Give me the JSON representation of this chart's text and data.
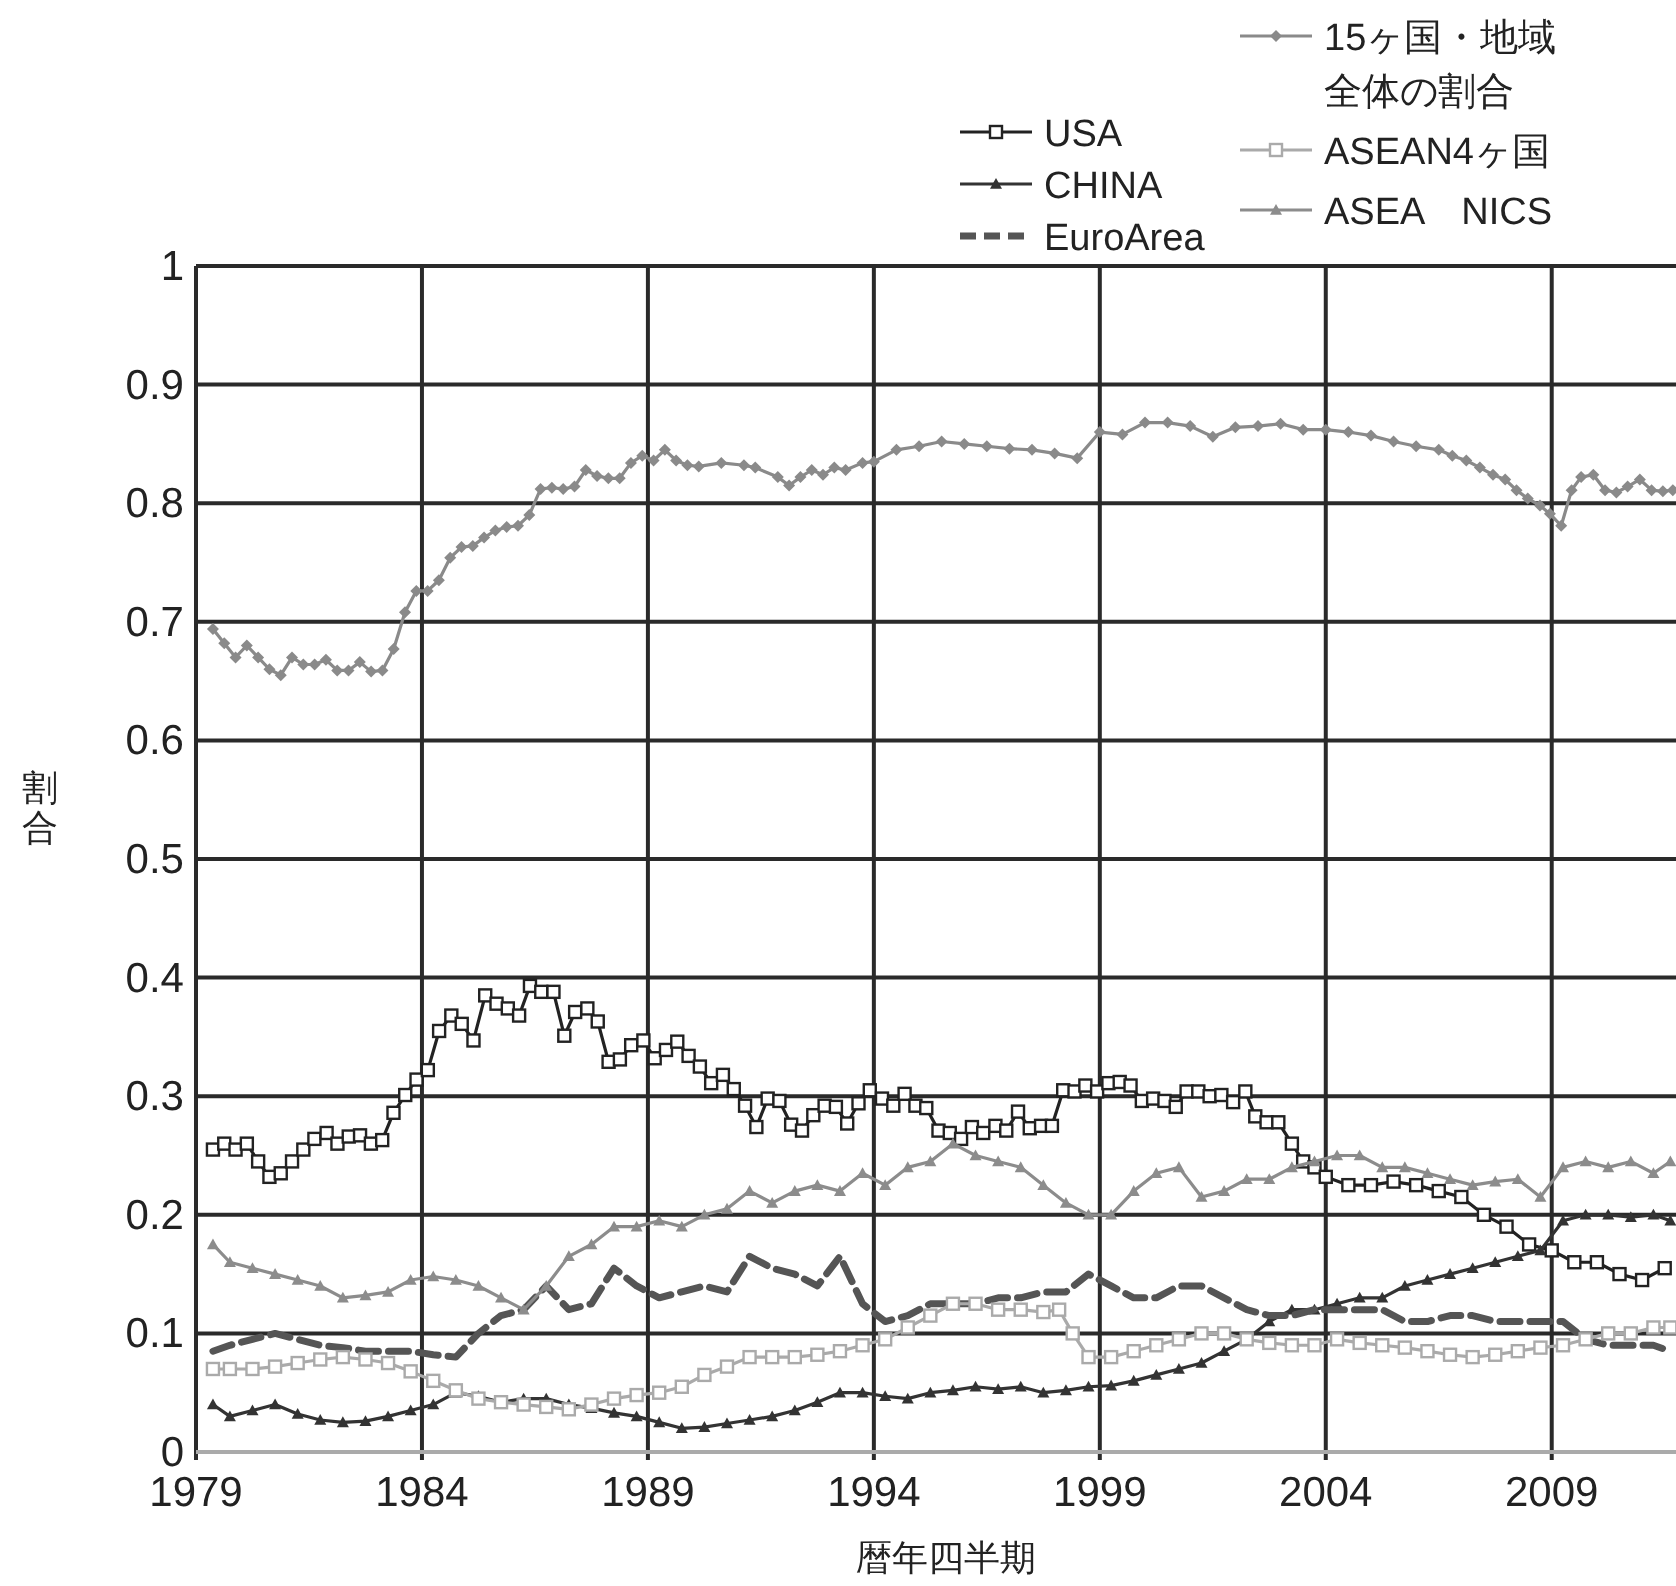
{
  "chart_data": {
    "type": "line",
    "xlabel": "暦年四半期",
    "ylabel": "割合",
    "xlim": [
      1979,
      2011.75
    ],
    "ylim": [
      0,
      1
    ],
    "xticks": [
      1979,
      1984,
      1989,
      1994,
      1999,
      2004,
      2009
    ],
    "yticks": [
      0,
      0.1,
      0.2,
      0.3,
      0.4,
      0.5,
      0.6,
      0.7,
      0.8,
      0.9,
      1
    ],
    "grid": true,
    "legend": "top right",
    "series": [
      {
        "name": "USA",
        "color": "#222222",
        "marker": "square",
        "line_style": "solid",
        "x": [
          1979.375,
          1979.625,
          1979.875,
          1980.125,
          1980.375,
          1980.625,
          1980.875,
          1981.125,
          1981.375,
          1981.62,
          1981.89,
          1982.13,
          1982.38,
          1982.63,
          1982.87,
          1983.12,
          1983.37,
          1983.63,
          1983.88,
          1984.13,
          1984.38,
          1984.65,
          1984.88,
          1985.14,
          1985.4,
          1985.65,
          1985.9,
          1986.15,
          1986.39,
          1986.64,
          1986.91,
          1987.15,
          1987.39,
          1987.66,
          1987.89,
          1988.13,
          1988.38,
          1988.63,
          1988.9,
          1989.15,
          1989.4,
          1989.65,
          1989.9,
          1990.15,
          1990.4,
          1990.66,
          1990.9,
          1991.15,
          1991.4,
          1991.65,
          1991.91,
          1992.17,
          1992.41,
          1992.66,
          1992.91,
          1993.16,
          1993.41,
          1993.66,
          1993.91,
          1994.18,
          1994.43,
          1994.68,
          1994.92,
          1995.16,
          1995.43,
          1995.68,
          1995.93,
          1996.17,
          1996.42,
          1996.69,
          1996.93,
          1997.19,
          1997.45,
          1997.7,
          1997.94,
          1998.19,
          1998.44,
          1998.68,
          1998.94,
          1999.19,
          1999.44,
          1999.68,
          1999.93,
          2000.18,
          2000.43,
          2000.68,
          2000.92,
          2001.18,
          2001.43,
          2001.69,
          2001.95,
          2002.22,
          2002.44,
          2002.69,
          2002.95,
          2003.25,
          2003.5,
          2003.75,
          2004,
          2004.5,
          2005,
          2005.5,
          2006,
          2006.5,
          2007,
          2007.5,
          2008,
          2008.5,
          2009,
          2009.5,
          2010,
          2010.5,
          2011,
          2011.5
        ],
        "values": [
          0.255,
          0.26,
          0.255,
          0.26,
          0.245,
          0.232,
          0.235,
          0.245,
          0.255,
          0.264,
          0.269,
          0.26,
          0.266,
          0.267,
          0.26,
          0.263,
          0.286,
          0.301,
          0.314,
          0.322,
          0.355,
          0.368,
          0.361,
          0.347,
          0.385,
          0.378,
          0.374,
          0.368,
          0.393,
          0.388,
          0.388,
          0.351,
          0.371,
          0.374,
          0.363,
          0.329,
          0.331,
          0.343,
          0.347,
          0.332,
          0.339,
          0.346,
          0.334,
          0.325,
          0.311,
          0.318,
          0.306,
          0.292,
          0.274,
          0.298,
          0.296,
          0.276,
          0.271,
          0.284,
          0.292,
          0.291,
          0.277,
          0.294,
          0.305,
          0.298,
          0.292,
          0.302,
          0.292,
          0.29,
          0.271,
          0.269,
          0.264,
          0.274,
          0.269,
          0.275,
          0.271,
          0.287,
          0.273,
          0.275,
          0.275,
          0.305,
          0.304,
          0.309,
          0.304,
          0.311,
          0.312,
          0.309,
          0.296,
          0.298,
          0.296,
          0.291,
          0.304,
          0.304,
          0.3,
          0.301,
          0.295,
          0.304,
          0.283,
          0.278,
          0.278,
          0.26,
          0.245,
          0.24,
          0.232,
          0.225,
          0.225,
          0.228,
          0.225,
          0.22,
          0.215,
          0.2,
          0.19,
          0.175,
          0.17,
          0.16,
          0.16,
          0.15,
          0.145,
          0.155
        ]
      },
      {
        "name": "CHINA",
        "color": "#333333",
        "marker": "triangle",
        "line_style": "solid",
        "x": [
          1979.375,
          1979.75,
          1980.25,
          1980.75,
          1981.25,
          1981.75,
          1982.25,
          1982.75,
          1983.25,
          1983.75,
          1984.25,
          1984.75,
          1985.25,
          1985.75,
          1986.25,
          1986.75,
          1987.25,
          1987.75,
          1988.25,
          1988.75,
          1989.25,
          1989.75,
          1990.25,
          1990.75,
          1991.25,
          1991.75,
          1992.25,
          1992.75,
          1993.25,
          1993.75,
          1994.25,
          1994.75,
          1995.25,
          1995.75,
          1996.25,
          1996.75,
          1997.25,
          1997.75,
          1998.25,
          1998.75,
          1999.25,
          1999.75,
          2000.25,
          2000.75,
          2001.25,
          2001.75,
          2002.25,
          2002.75,
          2003.25,
          2003.75,
          2004.25,
          2004.75,
          2005.25,
          2005.75,
          2006.25,
          2006.75,
          2007.25,
          2007.75,
          2008.25,
          2008.75,
          2009.25,
          2009.75,
          2010.25,
          2010.75,
          2011.25,
          2011.625
        ],
        "values": [
          0.04,
          0.03,
          0.035,
          0.04,
          0.032,
          0.027,
          0.025,
          0.026,
          0.03,
          0.035,
          0.04,
          0.05,
          0.047,
          0.042,
          0.045,
          0.045,
          0.04,
          0.037,
          0.033,
          0.03,
          0.025,
          0.02,
          0.021,
          0.024,
          0.027,
          0.03,
          0.035,
          0.042,
          0.05,
          0.05,
          0.047,
          0.045,
          0.05,
          0.052,
          0.055,
          0.053,
          0.055,
          0.05,
          0.052,
          0.055,
          0.056,
          0.06,
          0.065,
          0.07,
          0.075,
          0.085,
          0.095,
          0.11,
          0.12,
          0.12,
          0.125,
          0.13,
          0.13,
          0.14,
          0.145,
          0.15,
          0.155,
          0.16,
          0.165,
          0.17,
          0.195,
          0.2,
          0.2,
          0.198,
          0.2,
          0.195
        ]
      },
      {
        "name": "EuroArea",
        "color": "#555555",
        "marker": "none",
        "line_style": "dashed",
        "x": [
          1979.375,
          1979.75,
          1980.25,
          1980.75,
          1981.25,
          1981.75,
          1982.25,
          1982.75,
          1983.25,
          1983.75,
          1984.25,
          1984.75,
          1985.25,
          1985.75,
          1986.25,
          1986.75,
          1987.25,
          1987.75,
          1988.25,
          1988.75,
          1989.25,
          1989.75,
          1990.25,
          1990.75,
          1991.25,
          1991.75,
          1992.25,
          1992.75,
          1993.25,
          1993.75,
          1994.25,
          1994.75,
          1995.25,
          1995.75,
          1996.25,
          1996.75,
          1997.25,
          1997.75,
          1998.25,
          1998.75,
          1999.25,
          1999.75,
          2000.25,
          2000.75,
          2001.25,
          2001.75,
          2002.25,
          2002.75,
          2003.25,
          2003.75,
          2004.25,
          2004.75,
          2005.25,
          2005.75,
          2006.25,
          2006.75,
          2007.25,
          2007.75,
          2008.25,
          2008.75,
          2009.25,
          2009.75,
          2010.25,
          2010.75,
          2011.25,
          2011.625
        ],
        "values": [
          0.085,
          0.09,
          0.095,
          0.1,
          0.095,
          0.09,
          0.088,
          0.085,
          0.085,
          0.085,
          0.082,
          0.08,
          0.1,
          0.115,
          0.12,
          0.14,
          0.12,
          0.125,
          0.155,
          0.14,
          0.13,
          0.135,
          0.14,
          0.135,
          0.165,
          0.155,
          0.15,
          0.14,
          0.165,
          0.125,
          0.11,
          0.115,
          0.125,
          0.125,
          0.125,
          0.13,
          0.13,
          0.135,
          0.135,
          0.15,
          0.14,
          0.13,
          0.13,
          0.14,
          0.14,
          0.13,
          0.12,
          0.115,
          0.115,
          0.12,
          0.12,
          0.12,
          0.12,
          0.11,
          0.11,
          0.115,
          0.115,
          0.11,
          0.11,
          0.11,
          0.11,
          0.095,
          0.09,
          0.09,
          0.09,
          0.085
        ]
      },
      {
        "name": "15ヶ国・地域全体の割合",
        "color": "#8a8a8a",
        "marker": "diamond",
        "line_style": "solid",
        "x": [
          1979.375,
          1979.625,
          1979.875,
          1980.125,
          1980.375,
          1980.625,
          1980.875,
          1981.125,
          1981.375,
          1981.625,
          1981.875,
          1982.125,
          1982.375,
          1982.625,
          1982.875,
          1983.125,
          1983.375,
          1983.625,
          1983.875,
          1984.125,
          1984.375,
          1984.625,
          1984.875,
          1985.125,
          1985.375,
          1985.625,
          1985.875,
          1986.125,
          1986.375,
          1986.625,
          1986.875,
          1987.125,
          1987.375,
          1987.625,
          1987.875,
          1988.125,
          1988.375,
          1988.625,
          1988.875,
          1989.125,
          1989.375,
          1989.625,
          1989.875,
          1990.125,
          1990.625,
          1991.125,
          1991.375,
          1991.875,
          1992.125,
          1992.375,
          1992.625,
          1992.875,
          1993.125,
          1993.375,
          1993.75,
          1994,
          1994.5,
          1995,
          1995.5,
          1996,
          1996.5,
          1997,
          1997.5,
          1998,
          1998.5,
          1999,
          1999.5,
          2000,
          2000.5,
          2001,
          2001.5,
          2002,
          2002.5,
          2003,
          2003.5,
          2004,
          2004.5,
          2005,
          2005.5,
          2006,
          2006.5,
          2006.8,
          2007.11,
          2007.41,
          2007.7,
          2007.97,
          2008.22,
          2008.47,
          2008.74,
          2008.96,
          2009.21,
          2009.44,
          2009.65,
          2009.92,
          2010.18,
          2010.43,
          2010.68,
          2010.95,
          2011.21,
          2011.46,
          2011.68
        ],
        "values": [
          0.694,
          0.682,
          0.67,
          0.68,
          0.67,
          0.66,
          0.655,
          0.67,
          0.664,
          0.664,
          0.668,
          0.659,
          0.659,
          0.666,
          0.658,
          0.659,
          0.677,
          0.708,
          0.726,
          0.726,
          0.735,
          0.754,
          0.763,
          0.764,
          0.771,
          0.777,
          0.78,
          0.781,
          0.79,
          0.812,
          0.813,
          0.812,
          0.814,
          0.828,
          0.823,
          0.821,
          0.821,
          0.834,
          0.84,
          0.836,
          0.845,
          0.836,
          0.832,
          0.831,
          0.834,
          0.832,
          0.83,
          0.822,
          0.815,
          0.822,
          0.828,
          0.824,
          0.83,
          0.828,
          0.834,
          0.835,
          0.845,
          0.848,
          0.852,
          0.85,
          0.848,
          0.846,
          0.845,
          0.842,
          0.838,
          0.86,
          0.858,
          0.868,
          0.868,
          0.865,
          0.856,
          0.864,
          0.865,
          0.867,
          0.862,
          0.862,
          0.86,
          0.857,
          0.852,
          0.848,
          0.845,
          0.84,
          0.836,
          0.83,
          0.824,
          0.82,
          0.811,
          0.804,
          0.798,
          0.791,
          0.781,
          0.811,
          0.822,
          0.824,
          0.811,
          0.809,
          0.814,
          0.82,
          0.811,
          0.81,
          0.811
        ]
      },
      {
        "name": "ASEAN4ヶ国",
        "color": "#aaaaaa",
        "marker": "square",
        "line_style": "solid",
        "x": [
          1979.375,
          1979.75,
          1980.25,
          1980.75,
          1981.25,
          1981.75,
          1982.25,
          1982.75,
          1983.25,
          1983.75,
          1984.25,
          1984.75,
          1985.25,
          1985.75,
          1986.25,
          1986.75,
          1987.25,
          1987.75,
          1988.25,
          1988.75,
          1989.25,
          1989.75,
          1990.25,
          1990.75,
          1991.25,
          1991.75,
          1992.25,
          1992.75,
          1993.25,
          1993.75,
          1994.25,
          1994.75,
          1995.25,
          1995.75,
          1996.25,
          1996.75,
          1997.25,
          1997.75,
          1998.1,
          1998.4,
          1998.75,
          1999.25,
          1999.75,
          2000.25,
          2000.75,
          2001.25,
          2001.75,
          2002.25,
          2002.75,
          2003.25,
          2003.75,
          2004.25,
          2004.75,
          2005.25,
          2005.75,
          2006.25,
          2006.75,
          2007.25,
          2007.75,
          2008.25,
          2008.75,
          2009.25,
          2009.75,
          2010.25,
          2010.75,
          2011.25,
          2011.625
        ],
        "values": [
          0.07,
          0.07,
          0.07,
          0.072,
          0.075,
          0.078,
          0.08,
          0.078,
          0.075,
          0.068,
          0.06,
          0.052,
          0.045,
          0.042,
          0.04,
          0.038,
          0.036,
          0.04,
          0.045,
          0.048,
          0.05,
          0.055,
          0.065,
          0.072,
          0.08,
          0.08,
          0.08,
          0.082,
          0.085,
          0.09,
          0.095,
          0.105,
          0.115,
          0.125,
          0.125,
          0.12,
          0.12,
          0.118,
          0.12,
          0.1,
          0.08,
          0.08,
          0.085,
          0.09,
          0.095,
          0.1,
          0.1,
          0.095,
          0.092,
          0.09,
          0.09,
          0.095,
          0.092,
          0.09,
          0.088,
          0.085,
          0.082,
          0.08,
          0.082,
          0.085,
          0.088,
          0.09,
          0.095,
          0.1,
          0.1,
          0.105,
          0.105
        ]
      },
      {
        "name": "ASEA　NICS",
        "color": "#8c8c8c",
        "marker": "triangle",
        "line_style": "solid",
        "x": [
          1979.375,
          1979.75,
          1980.25,
          1980.75,
          1981.25,
          1981.75,
          1982.25,
          1982.75,
          1983.25,
          1983.75,
          1984.25,
          1984.75,
          1985.25,
          1985.75,
          1986.25,
          1986.75,
          1987.25,
          1987.75,
          1988.25,
          1988.75,
          1989.25,
          1989.75,
          1990.25,
          1990.75,
          1991.25,
          1991.75,
          1992.25,
          1992.75,
          1993.25,
          1993.75,
          1994.25,
          1994.75,
          1995.25,
          1995.75,
          1996.25,
          1996.75,
          1997.25,
          1997.75,
          1998.25,
          1998.75,
          1999.25,
          1999.75,
          2000.25,
          2000.75,
          2001.25,
          2001.75,
          2002.25,
          2002.75,
          2003.25,
          2003.75,
          2004.25,
          2004.75,
          2005.25,
          2005.75,
          2006.25,
          2006.75,
          2007.25,
          2007.75,
          2008.25,
          2008.75,
          2009.25,
          2009.75,
          2010.25,
          2010.75,
          2011.25,
          2011.625
        ],
        "values": [
          0.175,
          0.16,
          0.155,
          0.15,
          0.145,
          0.14,
          0.13,
          0.132,
          0.135,
          0.145,
          0.148,
          0.145,
          0.14,
          0.13,
          0.12,
          0.14,
          0.165,
          0.175,
          0.19,
          0.19,
          0.195,
          0.19,
          0.2,
          0.205,
          0.22,
          0.21,
          0.22,
          0.225,
          0.22,
          0.235,
          0.225,
          0.24,
          0.245,
          0.26,
          0.25,
          0.245,
          0.24,
          0.225,
          0.21,
          0.2,
          0.2,
          0.22,
          0.235,
          0.24,
          0.215,
          0.22,
          0.23,
          0.23,
          0.24,
          0.245,
          0.25,
          0.25,
          0.24,
          0.24,
          0.235,
          0.23,
          0.225,
          0.228,
          0.23,
          0.215,
          0.24,
          0.245,
          0.24,
          0.245,
          0.235,
          0.245
        ]
      }
    ]
  }
}
